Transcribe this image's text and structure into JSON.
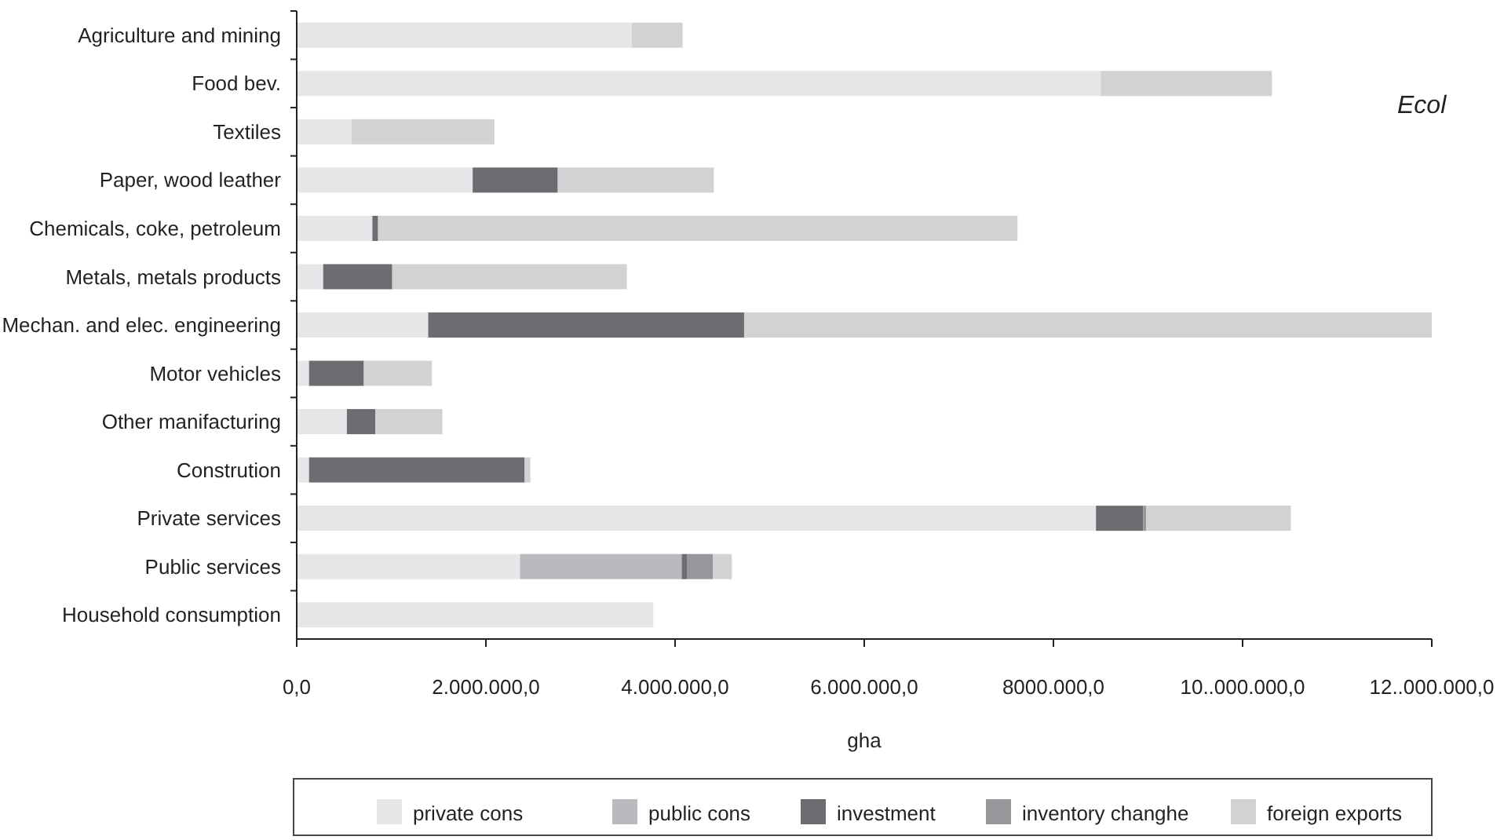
{
  "chart_data": {
    "type": "bar",
    "orientation": "horizontal",
    "stacked": true,
    "categories": [
      "Agriculture and mining",
      "Food bev.",
      "Textiles",
      "Paper, wood leather",
      "Chemicals, coke, petroleum",
      "Metals, metals products",
      "Mechan. and elec. engineering",
      "Motor vehicles",
      "Other manifacturing",
      "Constrution",
      "Private services",
      "Public services",
      "Household consumption"
    ],
    "series": [
      {
        "name": "private cons",
        "color": "#e5e6e8",
        "values": [
          3540000,
          8500000,
          580000,
          1860000,
          800000,
          280000,
          1390000,
          130000,
          530000,
          130000,
          8450000,
          2360000,
          3770000
        ]
      },
      {
        "name": "public cons",
        "color": "#b9babd",
        "values": [
          0,
          0,
          0,
          0,
          0,
          0,
          0,
          0,
          0,
          0,
          0,
          1710000,
          0
        ]
      },
      {
        "name": "investment",
        "color": "#6c6d71",
        "values": [
          0,
          0,
          0,
          900000,
          60000,
          730000,
          3340000,
          580000,
          300000,
          2280000,
          500000,
          60000,
          0
        ]
      },
      {
        "name": "inventory changhe",
        "color": "#96979a",
        "values": [
          0,
          0,
          0,
          0,
          0,
          0,
          0,
          0,
          0,
          0,
          30000,
          270000,
          0
        ]
      },
      {
        "name": "foreign exports",
        "color": "#d1d2d4",
        "values": [
          540000,
          1810000,
          1510000,
          1650000,
          6760000,
          2480000,
          7270000,
          720000,
          710000,
          60000,
          1530000,
          200000,
          0
        ]
      }
    ],
    "xlim": [
      0,
      12000000
    ],
    "xticks": [
      {
        "value": 0,
        "label": "0,0"
      },
      {
        "value": 2000000,
        "label": "2.000.000,0"
      },
      {
        "value": 4000000,
        "label": "4.000.000,0"
      },
      {
        "value": 6000000,
        "label": "6.000.000,0"
      },
      {
        "value": 8000000,
        "label": "8000.000,0"
      },
      {
        "value": 10000000,
        "label": "10..000.000,0"
      },
      {
        "value": 12000000,
        "label": "12..000.000,0"
      }
    ],
    "xlabel": "gha",
    "annotations": [
      "Ecol"
    ],
    "legend": "bottom",
    "grid": false
  }
}
